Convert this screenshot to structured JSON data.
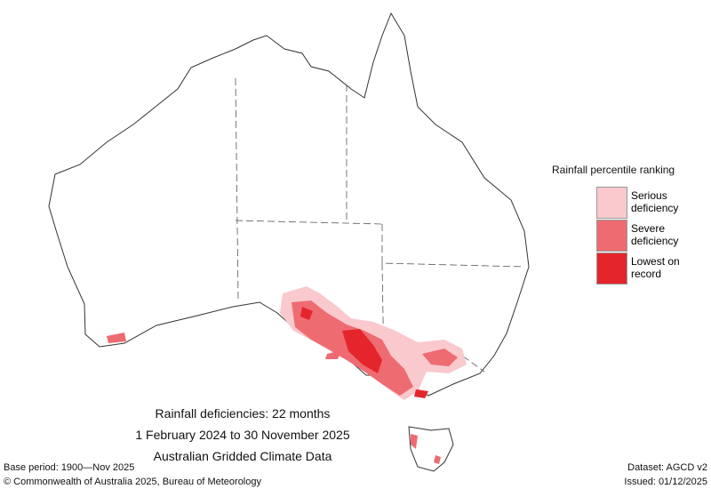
{
  "legend": {
    "title": "Rainfall percentile ranking",
    "items": [
      {
        "label": "Serious deficiency",
        "color": "#f9c9cd"
      },
      {
        "label": "Severe deficiency",
        "color": "#ee6b72"
      },
      {
        "label": "Lowest on record",
        "color": "#e4262c"
      }
    ]
  },
  "title": {
    "lines": [
      "Rainfall deficiencies: 22 months",
      "1 February 2024 to 30 November 2025",
      "Australian Gridded Climate Data"
    ]
  },
  "footer": {
    "base_period": "Base period: 1900—Nov 2025",
    "dataset": "Dataset: AGCD v2",
    "copyright": "© Commonwealth of Australia 2025, Bureau of Meteorology",
    "issued": "Issued: 01/12/2025"
  }
}
